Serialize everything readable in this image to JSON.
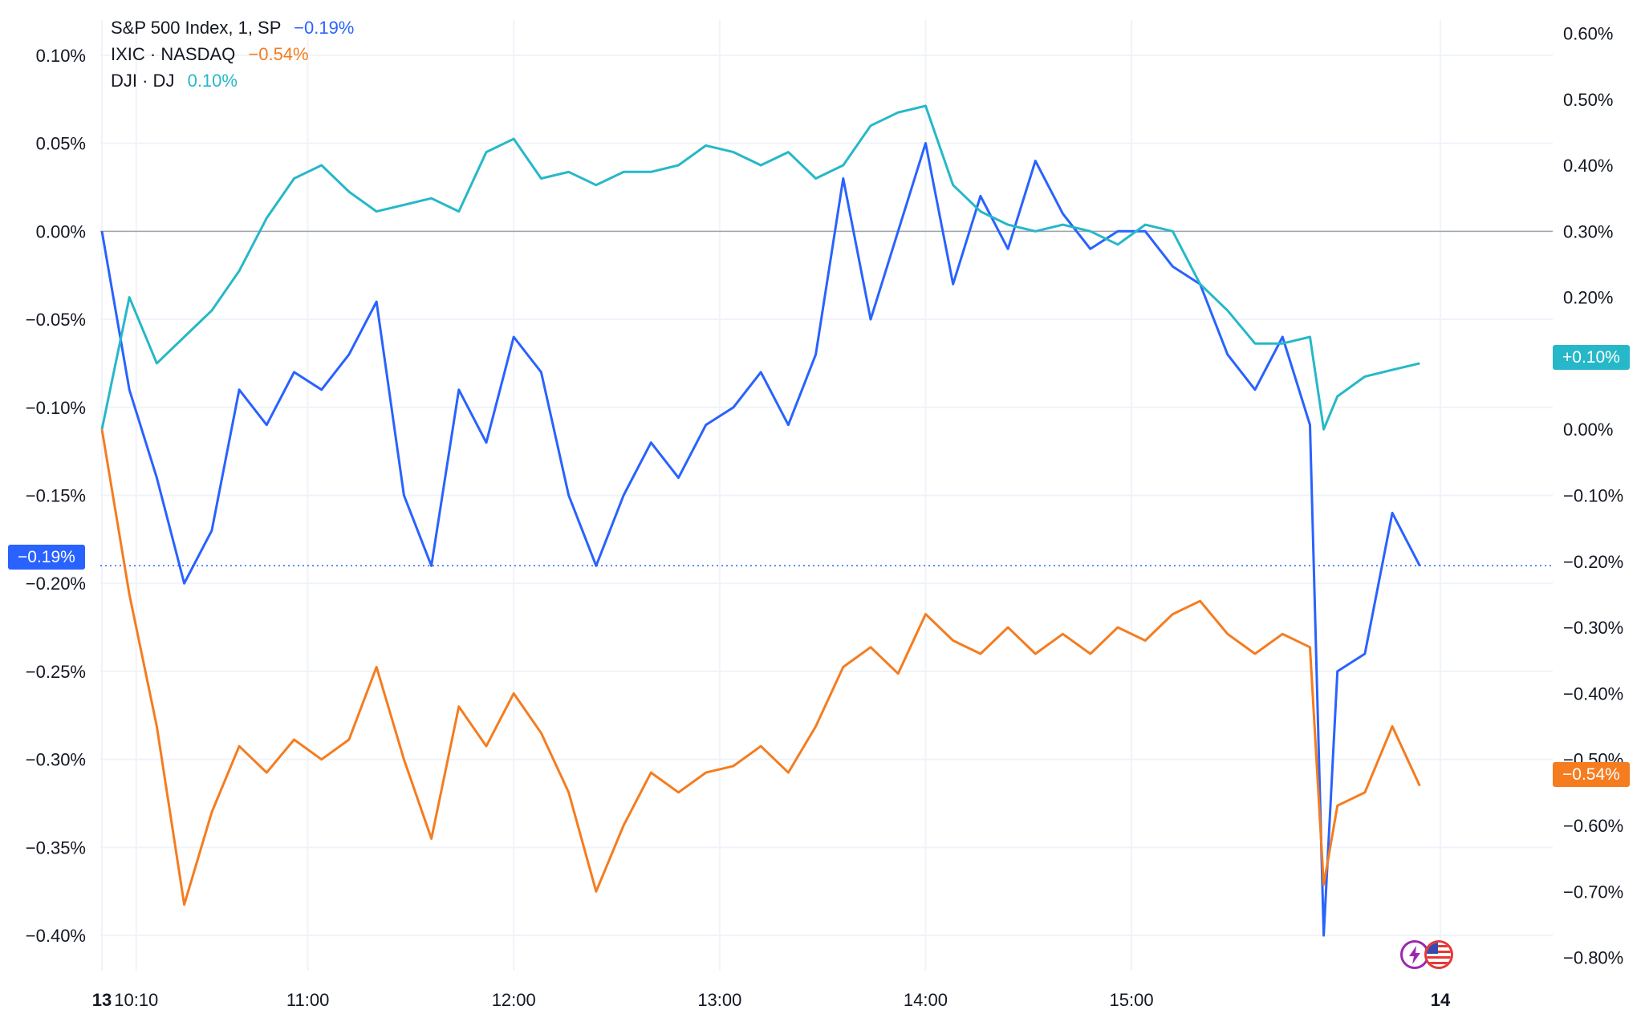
{
  "colors": {
    "sp500": "#2962ff",
    "nasdaq": "#f57c1f",
    "dji": "#26b8c8",
    "grid": "#f0f3fa",
    "zero_line": "#a0a4ab",
    "axis_text": "#131722"
  },
  "legend": [
    {
      "name": "S&P 500 Index, 1, SP",
      "value": "−0.19%"
    },
    {
      "name": "IXIC · NASDAQ",
      "value": "−0.54%"
    },
    {
      "name": "DJI · DJ",
      "value": "0.10%"
    }
  ],
  "badges": {
    "sp500": "−0.19%",
    "dji": "+0.10%",
    "nasdaq": "−0.54%"
  },
  "icons": [
    "lightning-icon",
    "us-flag-icon"
  ],
  "chart_data": {
    "type": "line",
    "x_tick_labels": [
      "13",
      "10:10",
      "11:00",
      "12:00",
      "13:00",
      "14:00",
      "15:00",
      "14"
    ],
    "left_axis": {
      "ticks": [
        "0.10%",
        "0.05%",
        "0.00%",
        "−0.05%",
        "−0.10%",
        "−0.15%",
        "−0.20%",
        "−0.25%",
        "−0.30%",
        "−0.35%",
        "−0.40%"
      ],
      "range": [
        -0.42,
        0.12
      ]
    },
    "right_axis": {
      "ticks": [
        "0.60%",
        "0.50%",
        "0.40%",
        "0.30%",
        "0.20%",
        "0.10%",
        "0.00%",
        "−0.10%",
        "−0.20%",
        "−0.30%",
        "−0.40%",
        "−0.50%",
        "−0.60%",
        "−0.70%",
        "−0.80%"
      ],
      "range": [
        -0.82,
        0.62
      ]
    },
    "series": [
      {
        "name": "S&P 500 Index, 1, SP",
        "axis": "left",
        "color": "#2962ff",
        "x": [
          "09:30",
          "09:38",
          "09:46",
          "09:54",
          "10:02",
          "10:10",
          "10:18",
          "10:26",
          "10:34",
          "10:42",
          "10:50",
          "10:58",
          "11:06",
          "11:14",
          "11:22",
          "11:30",
          "11:38",
          "11:46",
          "11:54",
          "12:02",
          "12:10",
          "12:18",
          "12:26",
          "12:34",
          "12:42",
          "12:50",
          "12:58",
          "13:06",
          "13:14",
          "13:22",
          "13:30",
          "13:38",
          "13:46",
          "13:54",
          "14:02",
          "14:10",
          "14:18",
          "14:26",
          "14:34",
          "14:42",
          "14:50",
          "14:58",
          "15:06",
          "15:14",
          "15:22",
          "15:26",
          "15:30",
          "15:38",
          "15:46",
          "15:54"
        ],
        "y": [
          0.0,
          -0.09,
          -0.14,
          -0.2,
          -0.17,
          -0.09,
          -0.11,
          -0.08,
          -0.09,
          -0.07,
          -0.04,
          -0.15,
          -0.19,
          -0.09,
          -0.12,
          -0.06,
          -0.08,
          -0.15,
          -0.19,
          -0.15,
          -0.12,
          -0.14,
          -0.11,
          -0.1,
          -0.08,
          -0.11,
          -0.07,
          0.03,
          -0.05,
          0.0,
          0.05,
          -0.03,
          0.02,
          -0.01,
          0.04,
          0.01,
          -0.01,
          0.0,
          0.0,
          -0.02,
          -0.03,
          -0.07,
          -0.09,
          -0.06,
          -0.11,
          -0.4,
          -0.25,
          -0.24,
          -0.16,
          -0.19
        ]
      },
      {
        "name": "IXIC · NASDAQ",
        "axis": "right",
        "color": "#f57c1f",
        "x": [
          "09:30",
          "09:38",
          "09:46",
          "09:54",
          "10:02",
          "10:10",
          "10:18",
          "10:26",
          "10:34",
          "10:42",
          "10:50",
          "10:58",
          "11:06",
          "11:14",
          "11:22",
          "11:30",
          "11:38",
          "11:46",
          "11:54",
          "12:02",
          "12:10",
          "12:18",
          "12:26",
          "12:34",
          "12:42",
          "12:50",
          "12:58",
          "13:06",
          "13:14",
          "13:22",
          "13:30",
          "13:38",
          "13:46",
          "13:54",
          "14:02",
          "14:10",
          "14:18",
          "14:26",
          "14:34",
          "14:42",
          "14:50",
          "14:58",
          "15:06",
          "15:14",
          "15:22",
          "15:26",
          "15:30",
          "15:38",
          "15:46",
          "15:54"
        ],
        "y": [
          0.0,
          -0.25,
          -0.45,
          -0.72,
          -0.58,
          -0.48,
          -0.52,
          -0.47,
          -0.5,
          -0.47,
          -0.36,
          -0.5,
          -0.62,
          -0.42,
          -0.48,
          -0.4,
          -0.46,
          -0.55,
          -0.7,
          -0.6,
          -0.52,
          -0.55,
          -0.52,
          -0.51,
          -0.48,
          -0.52,
          -0.45,
          -0.36,
          -0.33,
          -0.37,
          -0.28,
          -0.32,
          -0.34,
          -0.3,
          -0.34,
          -0.31,
          -0.34,
          -0.3,
          -0.32,
          -0.28,
          -0.26,
          -0.31,
          -0.34,
          -0.31,
          -0.33,
          -0.69,
          -0.57,
          -0.55,
          -0.45,
          -0.54
        ]
      },
      {
        "name": "DJI · DJ",
        "axis": "right",
        "color": "#26b8c8",
        "x": [
          "09:30",
          "09:38",
          "09:46",
          "09:54",
          "10:02",
          "10:10",
          "10:18",
          "10:26",
          "10:34",
          "10:42",
          "10:50",
          "10:58",
          "11:06",
          "11:14",
          "11:22",
          "11:30",
          "11:38",
          "11:46",
          "11:54",
          "12:02",
          "12:10",
          "12:18",
          "12:26",
          "12:34",
          "12:42",
          "12:50",
          "12:58",
          "13:06",
          "13:14",
          "13:22",
          "13:30",
          "13:38",
          "13:46",
          "13:54",
          "14:02",
          "14:10",
          "14:18",
          "14:26",
          "14:34",
          "14:42",
          "14:50",
          "14:58",
          "15:06",
          "15:14",
          "15:22",
          "15:26",
          "15:30",
          "15:38",
          "15:46",
          "15:54"
        ],
        "y": [
          0.0,
          0.2,
          0.1,
          0.14,
          0.18,
          0.24,
          0.32,
          0.38,
          0.4,
          0.36,
          0.33,
          0.34,
          0.35,
          0.33,
          0.42,
          0.44,
          0.38,
          0.39,
          0.37,
          0.39,
          0.39,
          0.4,
          0.43,
          0.42,
          0.4,
          0.42,
          0.38,
          0.4,
          0.46,
          0.48,
          0.49,
          0.37,
          0.33,
          0.31,
          0.3,
          0.31,
          0.3,
          0.28,
          0.31,
          0.3,
          0.22,
          0.18,
          0.13,
          0.13,
          0.14,
          0.0,
          0.05,
          0.08,
          0.09,
          0.1
        ]
      }
    ]
  }
}
